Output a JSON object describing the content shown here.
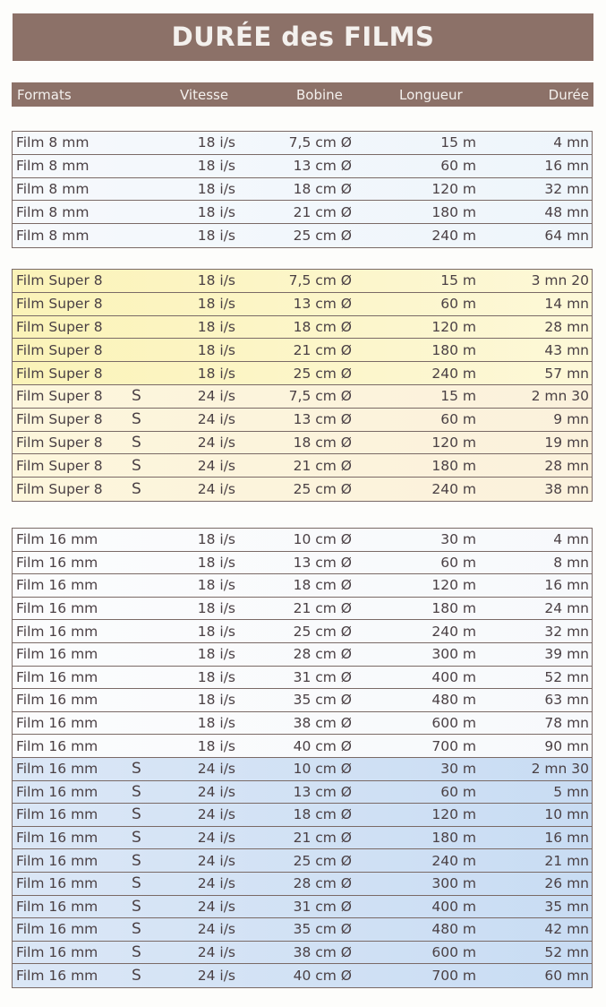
{
  "title": "DURÉE des FILMS",
  "columns": [
    "Formats",
    "Vitesse",
    "Bobine",
    "Longueur",
    "Durée"
  ],
  "colors": {
    "header_bg": "#8c7168",
    "border": "#7a6a66",
    "blue_light": "#eef5fb",
    "yellow": "#fbf3b8",
    "cream": "#fbf1dc",
    "white": "#f7f9fc",
    "blue": "#c8dcf3"
  },
  "groups": [
    {
      "rows": [
        [
          "Film 8 mm",
          "",
          "18 i/s",
          "7,5 cm Ø",
          "15 m",
          "4 mn"
        ],
        [
          "Film 8 mm",
          "",
          "18 i/s",
          "13 cm Ø",
          "60 m",
          "16 mn"
        ],
        [
          "Film 8 mm",
          "",
          "18 i/s",
          "18 cm Ø",
          "120 m",
          "32 mn"
        ],
        [
          "Film 8 mm",
          "",
          "18 i/s",
          "21 cm Ø",
          "180 m",
          "48 mn"
        ],
        [
          "Film 8 mm",
          "",
          "18 i/s",
          "25 cm Ø",
          "240 m",
          "64 mn"
        ]
      ]
    },
    {
      "rows": [
        [
          "Film Super 8",
          "",
          "18 i/s",
          "7,5 cm Ø",
          "15 m",
          "3 mn 20"
        ],
        [
          "Film Super 8",
          "",
          "18 i/s",
          "13 cm Ø",
          "60 m",
          "14 mn"
        ],
        [
          "Film Super 8",
          "",
          "18 i/s",
          "18 cm Ø",
          "120 m",
          "28 mn"
        ],
        [
          "Film Super 8",
          "",
          "18 i/s",
          "21 cm Ø",
          "180 m",
          "43 mn"
        ],
        [
          "Film Super 8",
          "",
          "18 i/s",
          "25 cm Ø",
          "240 m",
          "57 mn"
        ],
        [
          "Film Super 8",
          "S",
          "24 i/s",
          "7,5 cm Ø",
          "15 m",
          "2 mn 30"
        ],
        [
          "Film Super 8",
          "S",
          "24 i/s",
          "13 cm Ø",
          "60 m",
          "9 mn"
        ],
        [
          "Film Super 8",
          "S",
          "24 i/s",
          "18 cm Ø",
          "120 m",
          "19 mn"
        ],
        [
          "Film Super 8",
          "S",
          "24 i/s",
          "21 cm Ø",
          "180 m",
          "28 mn"
        ],
        [
          "Film Super 8",
          "S",
          "24 i/s",
          "25 cm Ø",
          "240 m",
          "38 mn"
        ]
      ]
    },
    {
      "rows": [
        [
          "Film 16 mm",
          "",
          "18 i/s",
          "10 cm Ø",
          "30 m",
          "4 mn"
        ],
        [
          "Film 16 mm",
          "",
          "18 i/s",
          "13 cm Ø",
          "60 m",
          "8 mn"
        ],
        [
          "Film 16 mm",
          "",
          "18 i/s",
          "18 cm Ø",
          "120 m",
          "16 mn"
        ],
        [
          "Film 16 mm",
          "",
          "18 i/s",
          "21 cm Ø",
          "180 m",
          "24 mn"
        ],
        [
          "Film 16 mm",
          "",
          "18 i/s",
          "25 cm Ø",
          "240 m",
          "32 mn"
        ],
        [
          "Film 16 mm",
          "",
          "18 i/s",
          "28 cm Ø",
          "300 m",
          "39 mn"
        ],
        [
          "Film 16 mm",
          "",
          "18 i/s",
          "31 cm Ø",
          "400 m",
          "52 mn"
        ],
        [
          "Film 16 mm",
          "",
          "18 i/s",
          "35 cm Ø",
          "480 m",
          "63 mn"
        ],
        [
          "Film 16 mm",
          "",
          "18 i/s",
          "38 cm Ø",
          "600 m",
          "78 mn"
        ],
        [
          "Film 16 mm",
          "",
          "18 i/s",
          "40 cm Ø",
          "700 m",
          "90 mn"
        ],
        [
          "Film 16 mm",
          "S",
          "24 i/s",
          "10 cm Ø",
          "30 m",
          "2 mn 30"
        ],
        [
          "Film 16 mm",
          "S",
          "24 i/s",
          "13 cm Ø",
          "60 m",
          "5 mn"
        ],
        [
          "Film 16 mm",
          "S",
          "24 i/s",
          "18 cm Ø",
          "120 m",
          "10 mn"
        ],
        [
          "Film 16 mm",
          "S",
          "24 i/s",
          "21 cm Ø",
          "180 m",
          "16 mn"
        ],
        [
          "Film 16 mm",
          "S",
          "24 i/s",
          "25 cm Ø",
          "240 m",
          "21 mn"
        ],
        [
          "Film 16 mm",
          "S",
          "24 i/s",
          "28 cm Ø",
          "300 m",
          "26 mn"
        ],
        [
          "Film 16 mm",
          "S",
          "24 i/s",
          "31 cm Ø",
          "400 m",
          "35 mn"
        ],
        [
          "Film 16 mm",
          "S",
          "24 i/s",
          "35 cm Ø",
          "480 m",
          "42 mn"
        ],
        [
          "Film 16 mm",
          "S",
          "24 i/s",
          "38 cm Ø",
          "600 m",
          "52 mn"
        ],
        [
          "Film 16 mm",
          "S",
          "24 i/s",
          "40 cm Ø",
          "700 m",
          "60 mn"
        ]
      ]
    }
  ]
}
